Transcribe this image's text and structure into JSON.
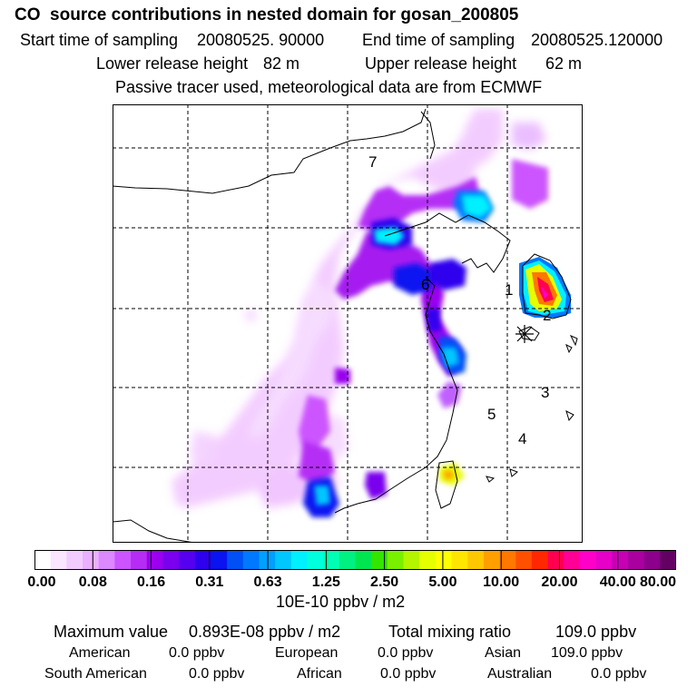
{
  "header": {
    "title": "CO  source contributions in nested domain for gosan_200805",
    "start_label": "Start time of sampling",
    "start_value": "20080525. 90000",
    "end_label": "End time of sampling",
    "end_value": "20080525.120000",
    "lower_label": "Lower release height",
    "lower_value": "82 m",
    "upper_label": "Upper release height",
    "upper_value": "62 m",
    "tracer_note": "Passive tracer used, meteorological data are from ECMWF"
  },
  "chart_data": {
    "type": "heatmap",
    "title": "CO  source contributions in nested domain for gosan_200805",
    "colorbar": {
      "units": "10E-10 ppbv / m2",
      "tick_labels": [
        "0.00",
        "0.08",
        "0.16",
        "0.31",
        "0.63",
        "1.25",
        "2.50",
        "5.00",
        "10.00",
        "20.00",
        "40.00",
        "80.00"
      ],
      "colors": [
        "#ffffff",
        "#fae6ff",
        "#f3ccff",
        "#eab0ff",
        "#dc88ff",
        "#cc55ff",
        "#b52df5",
        "#9a00ee",
        "#7a00ee",
        "#5500ee",
        "#2d00ee",
        "#0a14f0",
        "#0050f5",
        "#0078ff",
        "#00a0ff",
        "#00c8ff",
        "#00f0ff",
        "#00ffdc",
        "#00ffb4",
        "#00f082",
        "#00e650",
        "#32e600",
        "#78f000",
        "#b4f500",
        "#e6ff00",
        "#ffff00",
        "#ffe600",
        "#ffc800",
        "#ffa000",
        "#ff7800",
        "#ff5000",
        "#ff2800",
        "#ff0050",
        "#ff0096",
        "#ff00c8",
        "#e600c8",
        "#c800b4",
        "#aa00a0",
        "#8c008c",
        "#640064"
      ]
    },
    "region_labels": [
      "7",
      "6",
      "1",
      "2",
      "3",
      "5",
      "4"
    ],
    "receptor": "gosan",
    "maximum_value": "0.893E-08 ppbv / m2",
    "total_mixing_ratio": "109.0 ppbv"
  },
  "summary": {
    "max_label": "Maximum value",
    "max_value": "0.893E-08 ppbv / m2",
    "total_label": "Total mixing ratio",
    "total_value": "109.0 ppbv"
  },
  "sources": [
    {
      "name": "American",
      "value": "0.0 ppbv"
    },
    {
      "name": "European",
      "value": "0.0 ppbv"
    },
    {
      "name": "Asian",
      "value": "109.0 ppbv"
    },
    {
      "name": "South American",
      "value": "0.0 ppbv"
    },
    {
      "name": "African",
      "value": "0.0 ppbv"
    },
    {
      "name": "Australian",
      "value": "0.0 ppbv"
    }
  ]
}
